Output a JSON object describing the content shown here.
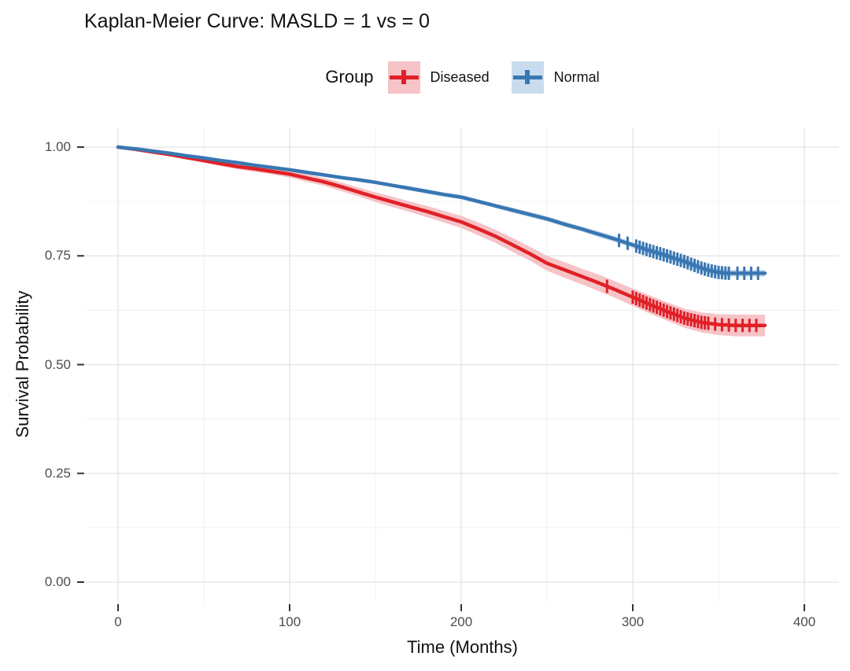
{
  "title": "Kaplan-Meier Curve: MASLD = 1 vs = 0",
  "legend": {
    "title": "Group",
    "position": "top",
    "entries": [
      {
        "label": "Diseased",
        "line_color": "#e02127",
        "band_color": "#f6c3c7"
      },
      {
        "label": "Normal",
        "line_color": "#3877b2",
        "band_color": "#c9dcee"
      }
    ]
  },
  "axes": {
    "x_title": "Time (Months)",
    "y_title": "Survival Probability"
  },
  "colors": {
    "grid_major": "#e3e3e3",
    "grid_minor": "#f0f0f0",
    "tick_mark": "#333333",
    "tick_label": "#4d4d4d"
  },
  "chart_data": {
    "type": "line",
    "subtype": "kaplan-meier-survival",
    "title": "Kaplan-Meier Curve: MASLD = 1 vs = 0",
    "xlabel": "Time (Months)",
    "ylabel": "Survival Probability",
    "xlim": [
      0,
      400
    ],
    "ylim": [
      0.0,
      1.0
    ],
    "grid": true,
    "legend_position": "top",
    "x_ticks": [
      {
        "value": 0,
        "label": "0"
      },
      {
        "value": 100,
        "label": "100"
      },
      {
        "value": 200,
        "label": "200"
      },
      {
        "value": 300,
        "label": "300"
      },
      {
        "value": 400,
        "label": "400"
      }
    ],
    "y_ticks": [
      {
        "value": 0.0,
        "label": "0.00"
      },
      {
        "value": 0.25,
        "label": "0.25"
      },
      {
        "value": 0.5,
        "label": "0.50"
      },
      {
        "value": 0.75,
        "label": "0.75"
      },
      {
        "value": 1.0,
        "label": "1.00"
      }
    ],
    "x_minor_ticks": [
      50,
      150,
      250,
      350
    ],
    "y_minor_ticks": [
      0.125,
      0.375,
      0.625,
      0.875
    ],
    "series": [
      {
        "name": "Diseased",
        "color": "#e02127",
        "band_color": "#f6c3c7",
        "points": [
          [
            0,
            1.0,
            0.002
          ],
          [
            10,
            0.995,
            0.003
          ],
          [
            20,
            0.989,
            0.004
          ],
          [
            30,
            0.983,
            0.004
          ],
          [
            40,
            0.976,
            0.005
          ],
          [
            50,
            0.969,
            0.005
          ],
          [
            60,
            0.962,
            0.006
          ],
          [
            70,
            0.955,
            0.006
          ],
          [
            80,
            0.95,
            0.007
          ],
          [
            90,
            0.944,
            0.007
          ],
          [
            100,
            0.938,
            0.008
          ],
          [
            110,
            0.929,
            0.009
          ],
          [
            120,
            0.92,
            0.009
          ],
          [
            130,
            0.909,
            0.01
          ],
          [
            140,
            0.897,
            0.01
          ],
          [
            150,
            0.885,
            0.011
          ],
          [
            160,
            0.874,
            0.012
          ],
          [
            170,
            0.863,
            0.012
          ],
          [
            180,
            0.852,
            0.013
          ],
          [
            190,
            0.84,
            0.013
          ],
          [
            200,
            0.828,
            0.014
          ],
          [
            210,
            0.812,
            0.015
          ],
          [
            220,
            0.795,
            0.015
          ],
          [
            230,
            0.775,
            0.016
          ],
          [
            240,
            0.755,
            0.016
          ],
          [
            250,
            0.733,
            0.017
          ],
          [
            260,
            0.718,
            0.018
          ],
          [
            270,
            0.703,
            0.018
          ],
          [
            280,
            0.688,
            0.019
          ],
          [
            290,
            0.672,
            0.019
          ],
          [
            300,
            0.655,
            0.02
          ],
          [
            310,
            0.638,
            0.021
          ],
          [
            320,
            0.622,
            0.021
          ],
          [
            330,
            0.607,
            0.022
          ],
          [
            340,
            0.597,
            0.023
          ],
          [
            350,
            0.592,
            0.024
          ],
          [
            360,
            0.59,
            0.025
          ],
          [
            377,
            0.59,
            0.025
          ]
        ],
        "censor_times": [
          285,
          300,
          302,
          304,
          306,
          308,
          310,
          312,
          314,
          316,
          318,
          320,
          322,
          324,
          326,
          328,
          330,
          332,
          334,
          336,
          338,
          340,
          342,
          344,
          348,
          352,
          356,
          360,
          364,
          368,
          372
        ]
      },
      {
        "name": "Normal",
        "color": "#3877b2",
        "band_color": "#c9dcee",
        "points": [
          [
            0,
            1.0,
            0.001
          ],
          [
            10,
            0.996,
            0.002
          ],
          [
            20,
            0.991,
            0.002
          ],
          [
            30,
            0.986,
            0.002
          ],
          [
            40,
            0.98,
            0.002
          ],
          [
            50,
            0.975,
            0.002
          ],
          [
            60,
            0.969,
            0.003
          ],
          [
            70,
            0.964,
            0.003
          ],
          [
            80,
            0.958,
            0.003
          ],
          [
            90,
            0.953,
            0.003
          ],
          [
            100,
            0.948,
            0.003
          ],
          [
            110,
            0.942,
            0.004
          ],
          [
            120,
            0.936,
            0.004
          ],
          [
            130,
            0.93,
            0.004
          ],
          [
            140,
            0.925,
            0.004
          ],
          [
            150,
            0.919,
            0.004
          ],
          [
            160,
            0.912,
            0.004
          ],
          [
            170,
            0.905,
            0.005
          ],
          [
            180,
            0.898,
            0.005
          ],
          [
            190,
            0.891,
            0.005
          ],
          [
            200,
            0.885,
            0.005
          ],
          [
            210,
            0.875,
            0.005
          ],
          [
            220,
            0.865,
            0.005
          ],
          [
            230,
            0.855,
            0.006
          ],
          [
            240,
            0.845,
            0.006
          ],
          [
            250,
            0.835,
            0.006
          ],
          [
            260,
            0.823,
            0.006
          ],
          [
            270,
            0.812,
            0.006
          ],
          [
            280,
            0.8,
            0.007
          ],
          [
            290,
            0.788,
            0.007
          ],
          [
            300,
            0.775,
            0.007
          ],
          [
            310,
            0.762,
            0.007
          ],
          [
            320,
            0.75,
            0.007
          ],
          [
            330,
            0.737,
            0.008
          ],
          [
            340,
            0.722,
            0.008
          ],
          [
            345,
            0.716,
            0.008
          ],
          [
            350,
            0.712,
            0.008
          ],
          [
            355,
            0.71,
            0.008
          ],
          [
            377,
            0.71,
            0.008
          ]
        ],
        "censor_times": [
          292,
          297,
          302,
          304,
          306,
          308,
          310,
          312,
          314,
          316,
          318,
          320,
          322,
          324,
          326,
          328,
          330,
          332,
          334,
          336,
          338,
          340,
          342,
          344,
          346,
          348,
          350,
          352,
          354,
          356,
          361,
          365,
          369,
          373
        ]
      }
    ]
  }
}
